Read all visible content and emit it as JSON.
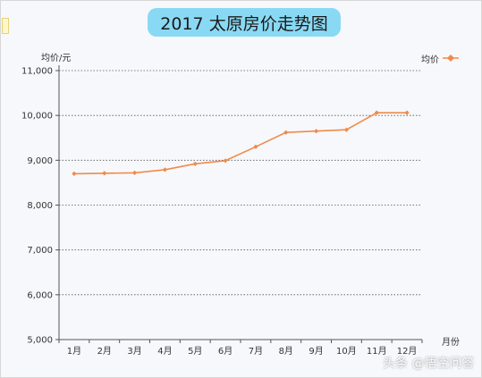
{
  "chart_data": {
    "type": "line",
    "title": "2017 太原房价走势图",
    "ylabel": "均价/元",
    "xlabel": "月份",
    "categories": [
      "1月",
      "2月",
      "3月",
      "4月",
      "5月",
      "6月",
      "7月",
      "8月",
      "9月",
      "10月",
      "11月",
      "12月"
    ],
    "series": [
      {
        "name": "均价",
        "values": [
          8700,
          8710,
          8720,
          8790,
          8920,
          8990,
          9300,
          9620,
          9650,
          9680,
          10060,
          10060
        ]
      }
    ],
    "ylim": [
      5000,
      11000
    ],
    "yticks": [
      "5,000",
      "6,000",
      "7,000",
      "8,000",
      "9,000",
      "10,000",
      "11,000"
    ],
    "grid": true,
    "legend": "top-right",
    "line_color": "#f08a4b"
  },
  "watermark": "头条 @悟空问答"
}
